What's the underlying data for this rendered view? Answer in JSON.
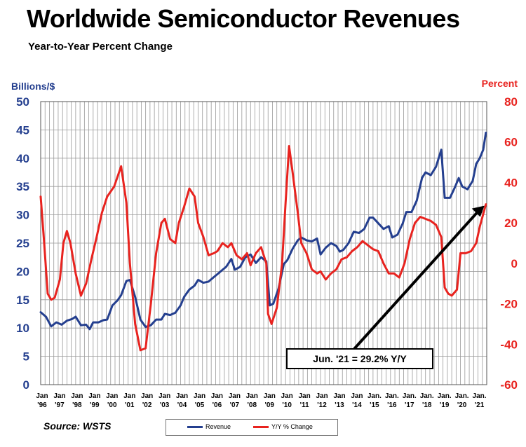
{
  "title": "Worldwide Semiconductor Revenues",
  "subtitle": "Year-to-Year Percent Change",
  "source": "Source: WSTS",
  "legend": {
    "revenue_label": "Revenue",
    "yoy_label": "Y/Y % Change"
  },
  "annotation": "Jun. '21 = 29.2% Y/Y",
  "colors": {
    "revenue": "#243f8f",
    "yoy": "#e8231f",
    "left_axis": "#243f8f",
    "right_axis": "#e8231f",
    "grid": "#999999"
  },
  "chart_data": {
    "type": "line",
    "left_axis": {
      "label": "Billions/$",
      "min": 0,
      "max": 50,
      "ticks": [
        "0",
        "5",
        "10",
        "15",
        "20",
        "25",
        "30",
        "35",
        "40",
        "45",
        "50"
      ]
    },
    "right_axis": {
      "label": "Percent",
      "min": -60,
      "max": 80,
      "ticks": [
        "-60",
        "-40",
        "-20",
        "0",
        "20",
        "40",
        "60",
        "80"
      ]
    },
    "x_range": [
      1996.0,
      2021.5
    ],
    "x_ticks": [
      {
        "top": "Jan",
        "bottom": "'96",
        "x": 1996
      },
      {
        "top": "Jan",
        "bottom": "'97",
        "x": 1997
      },
      {
        "top": "Jan",
        "bottom": "'98",
        "x": 1998
      },
      {
        "top": "Jan",
        "bottom": "'99",
        "x": 1999
      },
      {
        "top": "Jan",
        "bottom": "'00",
        "x": 2000
      },
      {
        "top": "Jan",
        "bottom": "'01",
        "x": 2001
      },
      {
        "top": "Jan",
        "bottom": "'02",
        "x": 2002
      },
      {
        "top": "Jan",
        "bottom": "'03",
        "x": 2003
      },
      {
        "top": "Jan",
        "bottom": "'04",
        "x": 2004
      },
      {
        "top": "Jan",
        "bottom": "'05",
        "x": 2005
      },
      {
        "top": "Jan",
        "bottom": "'06",
        "x": 2006
      },
      {
        "top": "Jan",
        "bottom": "'07",
        "x": 2007
      },
      {
        "top": "Jan",
        "bottom": "'08",
        "x": 2008
      },
      {
        "top": "Jan",
        "bottom": "'09",
        "x": 2009
      },
      {
        "top": "Jan",
        "bottom": "'10",
        "x": 2010
      },
      {
        "top": "Jan",
        "bottom": "'11",
        "x": 2011
      },
      {
        "top": "Jan",
        "bottom": "'12",
        "x": 2012
      },
      {
        "top": "Jan",
        "bottom": "'13",
        "x": 2013
      },
      {
        "top": "Jan",
        "bottom": "'14",
        "x": 2014
      },
      {
        "top": "Jan.",
        "bottom": "'15",
        "x": 2015
      },
      {
        "top": "Jan.",
        "bottom": "'16",
        "x": 2016
      },
      {
        "top": "Jan.",
        "bottom": "'17",
        "x": 2017
      },
      {
        "top": "Jan.",
        "bottom": "'18",
        "x": 2018
      },
      {
        "top": "Jan.",
        "bottom": "'19",
        "x": 2019
      },
      {
        "top": "Jan.",
        "bottom": "'20",
        "x": 2020
      },
      {
        "top": "Jan.",
        "bottom": "'21",
        "x": 2021
      }
    ],
    "grid": true,
    "series": [
      {
        "name": "Revenue",
        "axis": "left",
        "points": [
          [
            1996.0,
            12.8
          ],
          [
            1996.3,
            12.0
          ],
          [
            1996.6,
            10.3
          ],
          [
            1996.9,
            11.0
          ],
          [
            1997.2,
            10.6
          ],
          [
            1997.5,
            11.3
          ],
          [
            1997.8,
            11.6
          ],
          [
            1998.0,
            12.0
          ],
          [
            1998.3,
            10.5
          ],
          [
            1998.6,
            10.6
          ],
          [
            1998.8,
            9.8
          ],
          [
            1999.0,
            11.0
          ],
          [
            1999.3,
            11.0
          ],
          [
            1999.6,
            11.4
          ],
          [
            1999.8,
            11.5
          ],
          [
            2000.1,
            14.0
          ],
          [
            2000.4,
            14.9
          ],
          [
            2000.6,
            15.8
          ],
          [
            2000.9,
            18.3
          ],
          [
            2001.1,
            18.5
          ],
          [
            2001.4,
            15.5
          ],
          [
            2001.7,
            11.5
          ],
          [
            2002.0,
            10.2
          ],
          [
            2002.3,
            10.5
          ],
          [
            2002.6,
            11.5
          ],
          [
            2002.9,
            11.5
          ],
          [
            2003.1,
            12.5
          ],
          [
            2003.4,
            12.3
          ],
          [
            2003.7,
            12.7
          ],
          [
            2004.0,
            14.0
          ],
          [
            2004.2,
            15.5
          ],
          [
            2004.5,
            16.8
          ],
          [
            2004.8,
            17.5
          ],
          [
            2005.0,
            18.5
          ],
          [
            2005.3,
            18.0
          ],
          [
            2005.6,
            18.2
          ],
          [
            2005.9,
            19.0
          ],
          [
            2006.1,
            19.5
          ],
          [
            2006.4,
            20.3
          ],
          [
            2006.6,
            20.8
          ],
          [
            2006.9,
            22.2
          ],
          [
            2007.1,
            20.3
          ],
          [
            2007.4,
            20.8
          ],
          [
            2007.7,
            22.5
          ],
          [
            2008.0,
            23.0
          ],
          [
            2008.3,
            21.5
          ],
          [
            2008.6,
            22.5
          ],
          [
            2008.9,
            21.8
          ],
          [
            2009.1,
            14.0
          ],
          [
            2009.3,
            14.3
          ],
          [
            2009.6,
            17.0
          ],
          [
            2009.9,
            21.3
          ],
          [
            2010.1,
            22.0
          ],
          [
            2010.4,
            24.0
          ],
          [
            2010.7,
            25.5
          ],
          [
            2010.9,
            26.0
          ],
          [
            2011.2,
            25.5
          ],
          [
            2011.5,
            25.3
          ],
          [
            2011.8,
            25.8
          ],
          [
            2012.0,
            23.0
          ],
          [
            2012.3,
            24.2
          ],
          [
            2012.6,
            25.0
          ],
          [
            2012.9,
            24.5
          ],
          [
            2013.1,
            23.5
          ],
          [
            2013.3,
            23.8
          ],
          [
            2013.6,
            25.0
          ],
          [
            2013.9,
            27.0
          ],
          [
            2014.2,
            26.8
          ],
          [
            2014.5,
            27.5
          ],
          [
            2014.8,
            29.5
          ],
          [
            2015.0,
            29.5
          ],
          [
            2015.3,
            28.5
          ],
          [
            2015.6,
            27.5
          ],
          [
            2015.9,
            28.0
          ],
          [
            2016.1,
            26.0
          ],
          [
            2016.4,
            26.5
          ],
          [
            2016.7,
            28.5
          ],
          [
            2016.9,
            30.5
          ],
          [
            2017.2,
            30.5
          ],
          [
            2017.5,
            32.5
          ],
          [
            2017.8,
            36.5
          ],
          [
            2018.0,
            37.5
          ],
          [
            2018.3,
            37.0
          ],
          [
            2018.6,
            38.5
          ],
          [
            2018.9,
            41.5
          ],
          [
            2019.1,
            33.0
          ],
          [
            2019.4,
            33.0
          ],
          [
            2019.7,
            35.0
          ],
          [
            2019.9,
            36.5
          ],
          [
            2020.1,
            35.0
          ],
          [
            2020.4,
            34.5
          ],
          [
            2020.7,
            36.0
          ],
          [
            2020.9,
            39.0
          ],
          [
            2021.1,
            40.0
          ],
          [
            2021.3,
            41.5
          ],
          [
            2021.45,
            44.5
          ]
        ]
      },
      {
        "name": "Y/Y % Change",
        "axis": "right",
        "points": [
          [
            1996.0,
            33
          ],
          [
            1996.2,
            10
          ],
          [
            1996.4,
            -15
          ],
          [
            1996.6,
            -18
          ],
          [
            1996.8,
            -17
          ],
          [
            1997.1,
            -8
          ],
          [
            1997.3,
            10
          ],
          [
            1997.5,
            16
          ],
          [
            1997.7,
            10
          ],
          [
            1998.0,
            -5
          ],
          [
            1998.3,
            -16
          ],
          [
            1998.6,
            -10
          ],
          [
            1998.9,
            2
          ],
          [
            1999.2,
            13
          ],
          [
            1999.5,
            25
          ],
          [
            1999.8,
            33
          ],
          [
            2000.2,
            38
          ],
          [
            2000.6,
            48
          ],
          [
            2000.9,
            30
          ],
          [
            2001.1,
            0
          ],
          [
            2001.4,
            -30
          ],
          [
            2001.7,
            -43
          ],
          [
            2002.0,
            -42
          ],
          [
            2002.3,
            -20
          ],
          [
            2002.6,
            5
          ],
          [
            2002.9,
            20
          ],
          [
            2003.1,
            22
          ],
          [
            2003.4,
            12
          ],
          [
            2003.7,
            10
          ],
          [
            2003.9,
            20
          ],
          [
            2004.2,
            28
          ],
          [
            2004.5,
            37
          ],
          [
            2004.8,
            33
          ],
          [
            2005.0,
            20
          ],
          [
            2005.3,
            13
          ],
          [
            2005.6,
            4
          ],
          [
            2005.9,
            5
          ],
          [
            2006.1,
            6
          ],
          [
            2006.4,
            10
          ],
          [
            2006.7,
            8
          ],
          [
            2006.9,
            10
          ],
          [
            2007.2,
            4
          ],
          [
            2007.5,
            2
          ],
          [
            2007.8,
            5
          ],
          [
            2008.0,
            -1
          ],
          [
            2008.3,
            5
          ],
          [
            2008.6,
            8
          ],
          [
            2008.9,
            0
          ],
          [
            2009.0,
            -25
          ],
          [
            2009.2,
            -30
          ],
          [
            2009.5,
            -22
          ],
          [
            2009.8,
            0
          ],
          [
            2010.0,
            30
          ],
          [
            2010.2,
            58
          ],
          [
            2010.4,
            45
          ],
          [
            2010.7,
            25
          ],
          [
            2010.9,
            10
          ],
          [
            2011.2,
            5
          ],
          [
            2011.5,
            -3
          ],
          [
            2011.8,
            -5
          ],
          [
            2012.0,
            -4
          ],
          [
            2012.3,
            -8
          ],
          [
            2012.6,
            -5
          ],
          [
            2012.9,
            -3
          ],
          [
            2013.2,
            2
          ],
          [
            2013.5,
            3
          ],
          [
            2013.8,
            6
          ],
          [
            2014.1,
            8
          ],
          [
            2014.4,
            11
          ],
          [
            2014.7,
            9
          ],
          [
            2015.0,
            7
          ],
          [
            2015.3,
            6
          ],
          [
            2015.6,
            0
          ],
          [
            2015.9,
            -5
          ],
          [
            2016.2,
            -5
          ],
          [
            2016.5,
            -7
          ],
          [
            2016.8,
            0
          ],
          [
            2017.1,
            12
          ],
          [
            2017.4,
            20
          ],
          [
            2017.7,
            23
          ],
          [
            2018.0,
            22
          ],
          [
            2018.3,
            21
          ],
          [
            2018.6,
            19
          ],
          [
            2018.9,
            13
          ],
          [
            2019.1,
            -12
          ],
          [
            2019.3,
            -15
          ],
          [
            2019.5,
            -16
          ],
          [
            2019.8,
            -13
          ],
          [
            2020.0,
            5
          ],
          [
            2020.3,
            5
          ],
          [
            2020.6,
            6
          ],
          [
            2020.9,
            10
          ],
          [
            2021.1,
            18
          ],
          [
            2021.45,
            29.2
          ]
        ]
      }
    ]
  }
}
